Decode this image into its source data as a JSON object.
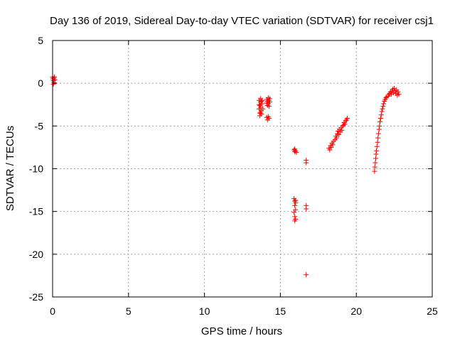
{
  "chart_data": {
    "type": "scatter",
    "title": "Day 136 of 2019, Sidereal Day-to-day VTEC variation (SDTVAR) for receiver csj1",
    "xlabel": "GPS time / hours",
    "ylabel": "SDTVAR / TECUs",
    "xlim": [
      0,
      25
    ],
    "ylim": [
      -25,
      5
    ],
    "xticks": [
      "0",
      "5",
      "10",
      "15",
      "20",
      "25"
    ],
    "yticks": [
      "5",
      "0",
      "-5",
      "-10",
      "-15",
      "-20",
      "-25"
    ],
    "grid": true,
    "marker": "plus",
    "marker_color": "#ff0000",
    "series": [
      {
        "points": [
          [
            0.0,
            0.7
          ],
          [
            0.02,
            0.5
          ],
          [
            0.05,
            0.3
          ],
          [
            0.05,
            -0.1
          ],
          [
            0.08,
            0.1
          ],
          [
            0.1,
            0.6
          ],
          [
            0.12,
            0.75
          ],
          [
            0.15,
            0.4
          ],
          [
            13.6,
            -2.0
          ],
          [
            13.6,
            -2.5
          ],
          [
            13.6,
            -3.0
          ],
          [
            13.65,
            -3.5
          ],
          [
            13.65,
            -3.8
          ],
          [
            13.7,
            -1.8
          ],
          [
            13.7,
            -2.2
          ],
          [
            13.7,
            -2.8
          ],
          [
            13.75,
            -3.2
          ],
          [
            13.75,
            -3.6
          ],
          [
            13.8,
            -2.4
          ],
          [
            13.8,
            -2.0
          ],
          [
            13.85,
            -3.0
          ],
          [
            13.65,
            -2.6
          ],
          [
            13.7,
            -3.4
          ],
          [
            13.75,
            -2.1
          ],
          [
            14.1,
            -2.3
          ],
          [
            14.1,
            -1.9
          ],
          [
            14.15,
            -2.6
          ],
          [
            14.15,
            -2.1
          ],
          [
            14.2,
            -1.7
          ],
          [
            14.2,
            -2.4
          ],
          [
            14.25,
            -2.0
          ],
          [
            14.25,
            -2.7
          ],
          [
            14.3,
            -1.8
          ],
          [
            14.3,
            -2.2
          ],
          [
            14.1,
            -4.0
          ],
          [
            14.15,
            -4.3
          ],
          [
            14.2,
            -3.9
          ],
          [
            14.25,
            -4.1
          ],
          [
            15.9,
            -7.8
          ],
          [
            15.95,
            -8.0
          ],
          [
            16.0,
            -7.9
          ],
          [
            16.05,
            -8.1
          ],
          [
            15.95,
            -7.7
          ],
          [
            15.9,
            -13.5
          ],
          [
            15.95,
            -13.8
          ],
          [
            16.0,
            -14.0
          ],
          [
            15.95,
            -14.3
          ],
          [
            16.0,
            -14.8
          ],
          [
            15.9,
            -15.1
          ],
          [
            15.95,
            -15.6
          ],
          [
            16.0,
            -15.9
          ],
          [
            15.95,
            -16.1
          ],
          [
            16.0,
            -13.7
          ],
          [
            16.7,
            -9.0
          ],
          [
            16.7,
            -9.3
          ],
          [
            16.7,
            -14.3
          ],
          [
            16.7,
            -14.7
          ],
          [
            16.7,
            -22.4
          ],
          [
            18.2,
            -7.6
          ],
          [
            18.25,
            -7.8
          ],
          [
            18.3,
            -7.3
          ],
          [
            18.35,
            -7.5
          ],
          [
            18.4,
            -7.0
          ],
          [
            18.45,
            -7.2
          ],
          [
            18.5,
            -6.8
          ],
          [
            18.6,
            -6.6
          ],
          [
            18.65,
            -6.2
          ],
          [
            18.7,
            -6.4
          ],
          [
            18.75,
            -5.9
          ],
          [
            18.8,
            -5.6
          ],
          [
            18.85,
            -6.0
          ],
          [
            18.9,
            -5.4
          ],
          [
            18.95,
            -5.7
          ],
          [
            19.0,
            -5.2
          ],
          [
            19.05,
            -5.5
          ],
          [
            19.1,
            -5.0
          ],
          [
            19.15,
            -4.9
          ],
          [
            19.2,
            -4.6
          ],
          [
            19.25,
            -4.8
          ],
          [
            19.3,
            -4.4
          ],
          [
            19.35,
            -4.3
          ],
          [
            19.4,
            -4.1
          ],
          [
            21.2,
            -10.3
          ],
          [
            21.22,
            -9.8
          ],
          [
            21.25,
            -9.3
          ],
          [
            21.28,
            -8.8
          ],
          [
            21.3,
            -8.3
          ],
          [
            21.33,
            -7.9
          ],
          [
            21.36,
            -7.4
          ],
          [
            21.4,
            -6.9
          ],
          [
            21.43,
            -6.4
          ],
          [
            21.46,
            -5.9
          ],
          [
            21.5,
            -5.4
          ],
          [
            21.53,
            -5.0
          ],
          [
            21.56,
            -4.5
          ],
          [
            21.6,
            -4.1
          ],
          [
            21.64,
            -3.7
          ],
          [
            21.68,
            -3.3
          ],
          [
            21.72,
            -3.0
          ],
          [
            21.76,
            -2.7
          ],
          [
            21.8,
            -2.4
          ],
          [
            21.85,
            -2.1
          ],
          [
            21.9,
            -1.9
          ],
          [
            21.95,
            -1.7
          ],
          [
            22.0,
            -1.6
          ],
          [
            22.1,
            -1.5
          ],
          [
            22.15,
            -1.3
          ],
          [
            22.2,
            -1.2
          ],
          [
            22.25,
            -1.0
          ],
          [
            22.3,
            -1.3
          ],
          [
            22.35,
            -0.9
          ],
          [
            22.4,
            -0.7
          ],
          [
            22.45,
            -1.1
          ],
          [
            22.5,
            -0.6
          ],
          [
            22.55,
            -0.9
          ],
          [
            22.6,
            -1.2
          ],
          [
            22.65,
            -0.8
          ],
          [
            22.7,
            -1.4
          ],
          [
            22.75,
            -1.0
          ],
          [
            22.8,
            -1.3
          ]
        ]
      }
    ]
  }
}
